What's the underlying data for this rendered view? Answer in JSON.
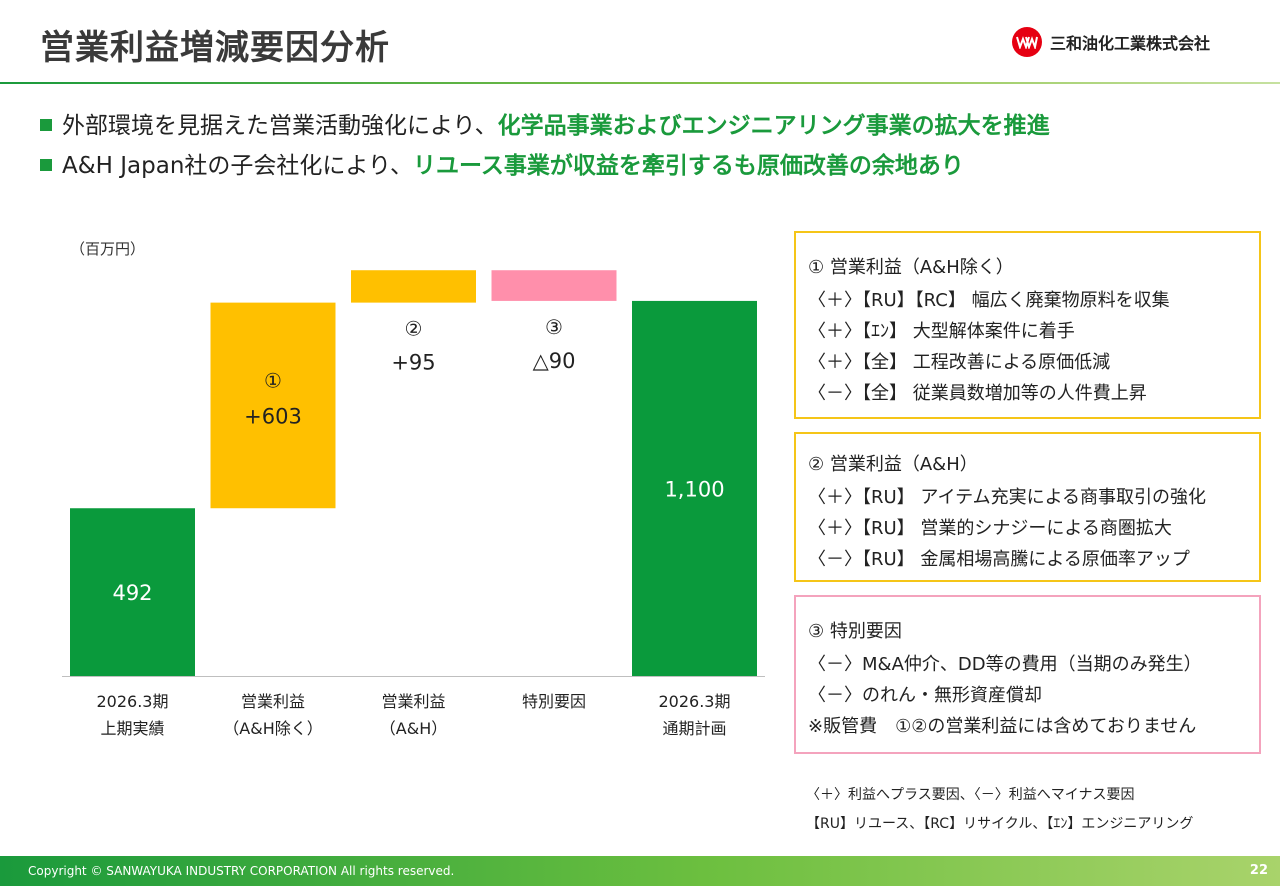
{
  "page": {
    "title": "営業利益増減要因分析",
    "company": "三和油化工業株式会社",
    "logo_icon": "sanwa-logo-icon",
    "footer": "Copyright © SANWAYUKA INDUSTRY CORPORATION All rights reserved.",
    "page_number": "22",
    "colors": {
      "green": "#1a9a3c",
      "yellow": "#ffc000",
      "pink": "#ff8fab",
      "red": "#e60012"
    }
  },
  "bullets": [
    {
      "plain": "外部環境を見据えた営業活動強化により、",
      "highlight": "化学品事業およびエンジニアリング事業の拡大を推進"
    },
    {
      "plain": "A&H Japan社の子会社化により、",
      "highlight": "リユース事業が収益を牽引するも原価改善の余地あり"
    }
  ],
  "chart_data": {
    "type": "bar",
    "subtype": "waterfall",
    "unit_label": "（百万円）",
    "ylim": [
      0,
      1220
    ],
    "categories": [
      [
        "2026.3期",
        "上期実績"
      ],
      [
        "営業利益",
        "（A&H除く）"
      ],
      [
        "営業利益",
        "（A&H）"
      ],
      [
        "特別要因"
      ],
      [
        "2026.3期",
        "通期計画"
      ]
    ],
    "bars": [
      {
        "base": 0,
        "value": 492,
        "color": "#0a9a3c",
        "marker": "",
        "label": "492",
        "label_color": "#ffffff"
      },
      {
        "base": 492,
        "value": 603,
        "color": "#ffc000",
        "marker": "①",
        "label": "+603",
        "label_color": "#222222"
      },
      {
        "base": 1095,
        "value": 95,
        "color": "#ffc000",
        "marker": "②",
        "label": "+95",
        "label_color": "#222222"
      },
      {
        "base": 1100,
        "value": 90,
        "color": "#ff8fab",
        "marker": "③",
        "label": "△90",
        "label_color": "#222222"
      },
      {
        "base": 0,
        "value": 1100,
        "color": "#0a9a3c",
        "marker": "",
        "label": "1,100",
        "label_color": "#ffffff"
      }
    ]
  },
  "boxes": [
    {
      "header": "① 営業利益（A&H除く）",
      "lines": [
        "〈＋〉【RU】【RC】 幅広く廃棄物原料を収集",
        "〈＋〉【ｴﾝ】 大型解体案件に着手",
        "〈＋〉【全】 工程改善による原価低減",
        "〈－〉【全】 従業員数増加等の人件費上昇"
      ]
    },
    {
      "header": "② 営業利益（A&H）",
      "lines": [
        "〈＋〉【RU】 アイテム充実による商事取引の強化",
        "〈＋〉【RU】 営業的シナジーによる商圏拡大",
        "〈－〉【RU】 金属相場高騰による原価率アップ"
      ]
    },
    {
      "header": "③ 特別要因",
      "lines": [
        "〈－〉M&A仲介、DD等の費用（当期のみ発生）",
        "〈－〉のれん・無形資産償却",
        "※販管費　①②の営業利益には含めておりません"
      ]
    }
  ],
  "legend": [
    "〈＋〉利益へプラス要因、〈－〉利益へマイナス要因",
    "【RU】リユース、【RC】リサイクル、【ｴﾝ】エンジニアリング"
  ]
}
